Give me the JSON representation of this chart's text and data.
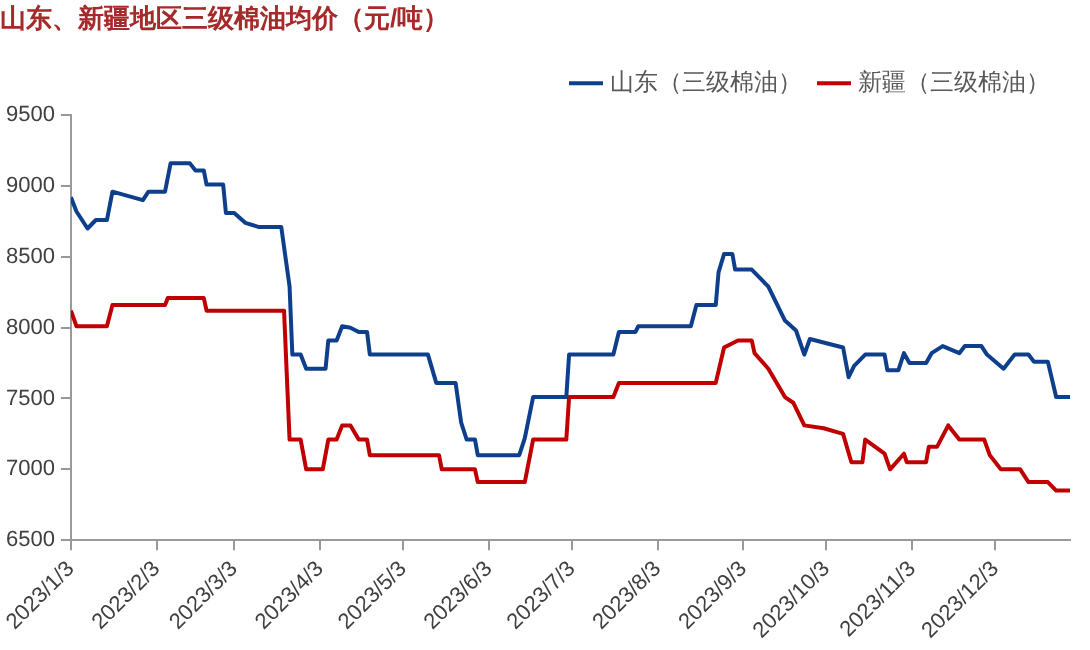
{
  "chart_data": {
    "type": "line",
    "title": "山东、新疆地区三级棉油均价（元/吨）",
    "series": [
      {
        "name": "山东（三级棉油）",
        "color": "#0e3f8c",
        "x": [
          "2023-01-03",
          "2023-01-05",
          "2023-01-09",
          "2023-01-12",
          "2023-01-16",
          "2023-01-18",
          "2023-01-29",
          "2023-01-31",
          "2023-02-06",
          "2023-02-08",
          "2023-02-15",
          "2023-02-17",
          "2023-02-20",
          "2023-02-21",
          "2023-02-27",
          "2023-02-28",
          "2023-03-03",
          "2023-03-07",
          "2023-03-12",
          "2023-03-20",
          "2023-03-23",
          "2023-03-24",
          "2023-03-27",
          "2023-03-29",
          "2023-04-05",
          "2023-04-06",
          "2023-04-09",
          "2023-04-11",
          "2023-04-14",
          "2023-04-17",
          "2023-04-20",
          "2023-04-21",
          "2023-05-12",
          "2023-05-15",
          "2023-05-22",
          "2023-05-24",
          "2023-05-26",
          "2023-05-29",
          "2023-05-30",
          "2023-06-14",
          "2023-06-16",
          "2023-06-19",
          "2023-07-01",
          "2023-07-02",
          "2023-07-18",
          "2023-07-20",
          "2023-07-26",
          "2023-07-27",
          "2023-08-15",
          "2023-08-17",
          "2023-08-24",
          "2023-08-25",
          "2023-08-27",
          "2023-08-30",
          "2023-08-31",
          "2023-09-06",
          "2023-09-12",
          "2023-09-18",
          "2023-09-22",
          "2023-09-25",
          "2023-09-27",
          "2023-10-09",
          "2023-10-11",
          "2023-10-13",
          "2023-10-17",
          "2023-10-24",
          "2023-10-25",
          "2023-10-29",
          "2023-10-31",
          "2023-11-02",
          "2023-11-08",
          "2023-11-10",
          "2023-11-14",
          "2023-11-20",
          "2023-11-22",
          "2023-11-28",
          "2023-11-30",
          "2023-12-06",
          "2023-12-10",
          "2023-12-15",
          "2023-12-17",
          "2023-12-22",
          "2023-12-25",
          "2023-12-30"
        ],
        "values": [
          8920,
          8820,
          8700,
          8760,
          8760,
          8960,
          8900,
          8960,
          8960,
          9160,
          9160,
          9110,
          9110,
          9010,
          9010,
          8810,
          8810,
          8740,
          8710,
          8710,
          8290,
          7810,
          7810,
          7710,
          7710,
          7910,
          7910,
          8010,
          8000,
          7970,
          7970,
          7810,
          7810,
          7610,
          7610,
          7330,
          7210,
          7210,
          7100,
          7100,
          7220,
          7510,
          7510,
          7810,
          7810,
          7970,
          7970,
          8010,
          8010,
          8160,
          8160,
          8390,
          8520,
          8520,
          8410,
          8410,
          8290,
          8050,
          7980,
          7810,
          7920,
          7860,
          7650,
          7730,
          7810,
          7810,
          7700,
          7700,
          7820,
          7750,
          7750,
          7820,
          7870,
          7820,
          7870,
          7870,
          7810,
          7710,
          7810,
          7810,
          7760,
          7760,
          7510,
          7510
        ]
      },
      {
        "name": "新疆（三级棉油）",
        "color": "#c00000",
        "x": [
          "2023-01-03",
          "2023-01-05",
          "2023-01-16",
          "2023-01-18",
          "2023-02-06",
          "2023-02-07",
          "2023-02-20",
          "2023-02-21",
          "2023-03-21",
          "2023-03-23",
          "2023-03-27",
          "2023-03-29",
          "2023-04-04",
          "2023-04-06",
          "2023-04-09",
          "2023-04-11",
          "2023-04-14",
          "2023-04-17",
          "2023-04-20",
          "2023-04-21",
          "2023-05-16",
          "2023-05-17",
          "2023-05-29",
          "2023-05-30",
          "2023-06-16",
          "2023-06-19",
          "2023-07-01",
          "2023-07-02",
          "2023-07-18",
          "2023-07-20",
          "2023-08-24",
          "2023-08-27",
          "2023-09-01",
          "2023-09-06",
          "2023-09-07",
          "2023-09-12",
          "2023-09-18",
          "2023-09-21",
          "2023-09-25",
          "2023-10-02",
          "2023-10-09",
          "2023-10-12",
          "2023-10-16",
          "2023-10-17",
          "2023-10-24",
          "2023-10-26",
          "2023-10-31",
          "2023-11-01",
          "2023-11-08",
          "2023-11-09",
          "2023-11-12",
          "2023-11-16",
          "2023-11-20",
          "2023-11-29",
          "2023-12-01",
          "2023-12-05",
          "2023-12-12",
          "2023-12-15",
          "2023-12-22",
          "2023-12-25",
          "2023-12-30"
        ],
        "values": [
          8120,
          8010,
          8010,
          8160,
          8160,
          8210,
          8210,
          8120,
          8120,
          7210,
          7210,
          7000,
          7000,
          7210,
          7210,
          7310,
          7310,
          7210,
          7210,
          7100,
          7100,
          7000,
          7000,
          6910,
          6910,
          7210,
          7210,
          7510,
          7510,
          7610,
          7610,
          7860,
          7910,
          7910,
          7820,
          7710,
          7510,
          7470,
          7310,
          7290,
          7250,
          7050,
          7050,
          7210,
          7110,
          7000,
          7110,
          7050,
          7050,
          7160,
          7160,
          7310,
          7210,
          7210,
          7100,
          7000,
          7000,
          6910,
          6910,
          6850,
          6850
        ]
      }
    ],
    "xlim": [
      "2023-01-03",
      "2023-12-30"
    ],
    "xticks": [
      {
        "value": "2023-01-03",
        "label": "2023/1/3"
      },
      {
        "value": "2023-02-03",
        "label": "2023/2/3"
      },
      {
        "value": "2023-03-03",
        "label": "2023/3/3"
      },
      {
        "value": "2023-04-03",
        "label": "2023/4/3"
      },
      {
        "value": "2023-05-03",
        "label": "2023/5/3"
      },
      {
        "value": "2023-06-03",
        "label": "2023/6/3"
      },
      {
        "value": "2023-07-03",
        "label": "2023/7/3"
      },
      {
        "value": "2023-08-03",
        "label": "2023/8/3"
      },
      {
        "value": "2023-09-03",
        "label": "2023/9/3"
      },
      {
        "value": "2023-10-03",
        "label": "2023/10/3"
      },
      {
        "value": "2023-11-03",
        "label": "2023/11/3"
      },
      {
        "value": "2023-12-03",
        "label": "2023/12/3"
      }
    ],
    "ylim": [
      6500,
      9500
    ],
    "yticks": [
      6500,
      7000,
      7500,
      8000,
      8500,
      9000,
      9500
    ],
    "legend": "top right",
    "marker": "none",
    "line_style": "solid"
  }
}
